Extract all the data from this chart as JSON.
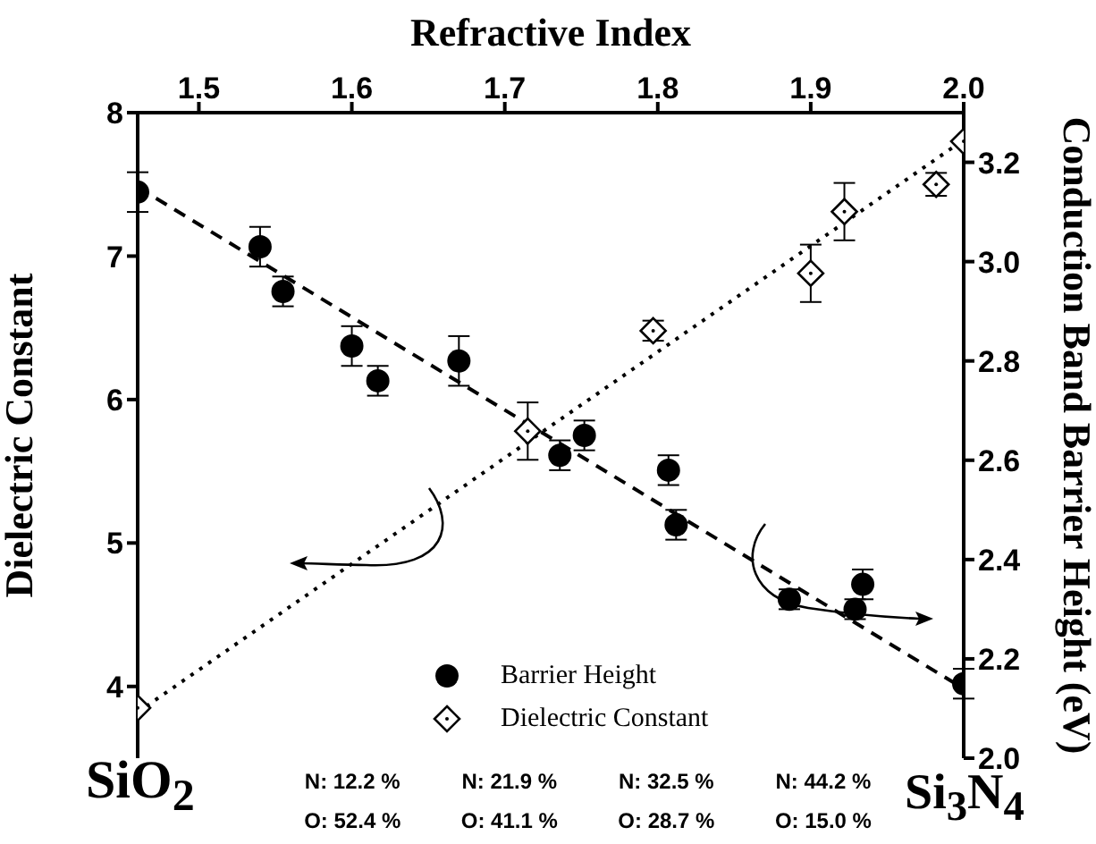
{
  "chart_data": {
    "type": "scatter",
    "xlabel": "Refractive Index",
    "ylabel": "Dielectric Constant",
    "y2label": "Conduction Band Barrier Height (eV)",
    "xlim": [
      1.46,
      2.0
    ],
    "xticks": [
      1.5,
      1.6,
      1.7,
      1.8,
      1.9,
      {
        "value": 2.0,
        "label": "2.0"
      }
    ],
    "ylim": [
      3.5,
      8
    ],
    "yticks": [
      4,
      5,
      6,
      7,
      8
    ],
    "y2lim": [
      2.0,
      3.3
    ],
    "y2ticks": [
      {
        "value": 2.0,
        "label": "2.0"
      },
      2.2,
      2.4,
      2.6,
      2.8,
      {
        "value": 3.0,
        "label": "3.0"
      },
      3.2
    ],
    "legend": "bottom",
    "series": [
      {
        "name": "Barrier Height",
        "axis": "y2",
        "marker": "circle",
        "color": "#000000",
        "x": [
          1.46,
          1.54,
          1.555,
          1.6,
          1.617,
          1.67,
          1.736,
          1.752,
          1.807,
          1.812,
          1.886,
          1.929,
          1.934,
          2.0
        ],
        "values": [
          3.14,
          3.03,
          2.94,
          2.83,
          2.76,
          2.8,
          2.61,
          2.65,
          2.58,
          2.47,
          2.32,
          2.3,
          2.35,
          2.15
        ],
        "errors": [
          0.04,
          0.04,
          0.03,
          0.04,
          0.03,
          0.05,
          0.03,
          0.03,
          0.03,
          0.03,
          0.02,
          0.02,
          0.03,
          0.03
        ]
      },
      {
        "name": "Dielectric Constant",
        "marker": "diamond",
        "color": "#000000",
        "x": [
          1.46,
          1.715,
          1.797,
          1.9,
          1.922,
          1.982,
          2.0
        ],
        "values": [
          3.85,
          5.78,
          6.48,
          6.88,
          7.31,
          7.5,
          7.8
        ],
        "errors": [
          null,
          0.2,
          0.07,
          0.2,
          0.2,
          0.08,
          null
        ]
      },
      {
        "type": "line",
        "axis": "y2",
        "line_style": "dashed",
        "color": "#000000",
        "x": [
          1.46,
          2.0
        ],
        "values": [
          3.15,
          2.14
        ]
      },
      {
        "type": "line",
        "line_style": "dotted",
        "color": "#000000",
        "x": [
          1.46,
          2.0
        ],
        "values": [
          3.82,
          7.81
        ]
      }
    ],
    "annotations": [
      "SiO$_{2}$",
      "Si$_{3}$N$_{4}$",
      "N: 12.2 %",
      "O: 52.4 %",
      "N: 21.9 %",
      "O: 41.1 %",
      "N: 32.5 %",
      "O: 28.7 %",
      "N: 44.2 %",
      "O: 15.0 %"
    ]
  }
}
